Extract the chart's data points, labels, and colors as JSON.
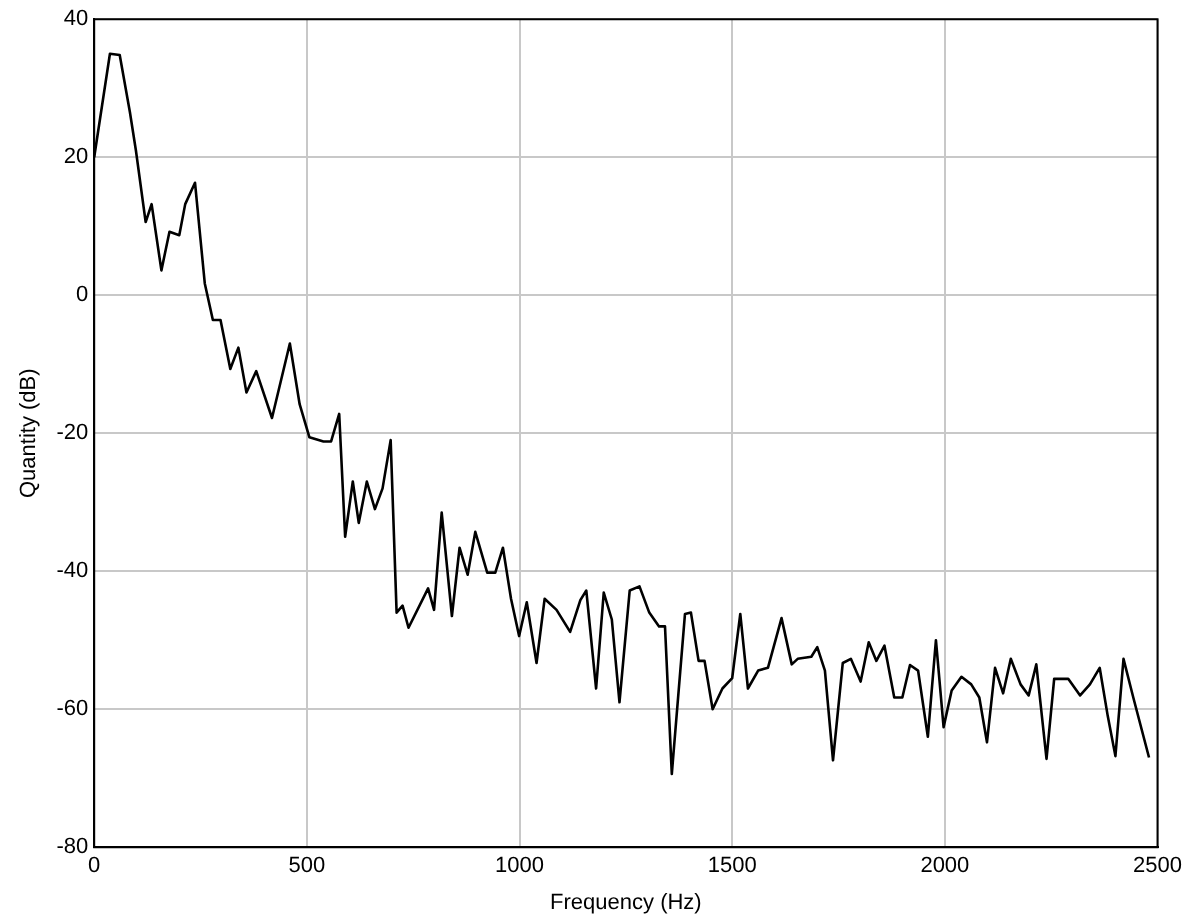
{
  "chart_data": {
    "type": "line",
    "xlabel": "Frequency (Hz)",
    "ylabel": "Quantity (dB)",
    "xlim": [
      0,
      2500
    ],
    "xticks": [
      0,
      500,
      1000,
      1500,
      2000,
      2500
    ],
    "ylim": [
      -80,
      40
    ],
    "yticks": [
      -80,
      -60,
      -40,
      -20,
      0,
      20,
      40
    ],
    "grid": true,
    "legend": false,
    "marker": "none",
    "line_style": "solid",
    "series": [
      {
        "color": "#000000",
        "x": [
          0,
          37,
          60,
          84,
          98,
          121,
          135,
          158,
          177,
          200,
          214,
          237,
          260,
          279,
          297,
          320,
          339,
          358,
          381,
          418,
          460,
          483,
          506,
          539,
          557,
          576,
          590,
          608,
          622,
          641,
          660,
          678,
          697,
          711,
          725,
          739,
          785,
          799,
          817,
          841,
          859,
          878,
          896,
          924,
          943,
          961,
          980,
          999,
          1017,
          1040,
          1059,
          1087,
          1119,
          1143,
          1157,
          1180,
          1198,
          1217,
          1235,
          1259,
          1282,
          1305,
          1328,
          1342,
          1358,
          1389,
          1403,
          1421,
          1435,
          1454,
          1477,
          1500,
          1519,
          1537,
          1561,
          1584,
          1616,
          1640,
          1654,
          1686,
          1700,
          1718,
          1737,
          1760,
          1779,
          1802,
          1821,
          1839,
          1858,
          1881,
          1900,
          1918,
          1937,
          1960,
          1979,
          1997,
          2016,
          2039,
          2062,
          2081,
          2099,
          2118,
          2137,
          2155,
          2178,
          2197,
          2215,
          2239,
          2257,
          2290,
          2318,
          2341,
          2364,
          2383,
          2401,
          2420,
          2443,
          2480
        ],
        "values": [
          20,
          35,
          34.8,
          26.5,
          21,
          10.6,
          13.2,
          3.6,
          9.2,
          8.7,
          13.2,
          16.3,
          1.7,
          -3.6,
          -3.6,
          -10.7,
          -7.6,
          -14.1,
          -11,
          -17.8,
          -7,
          -15.8,
          -20.6,
          -21.2,
          -21.2,
          -17.2,
          -35,
          -27,
          -33,
          -27,
          -31,
          -28,
          -21,
          -46,
          -45,
          -48.2,
          -42.5,
          -45.6,
          -31.5,
          -46.5,
          -36.6,
          -40.5,
          -34.3,
          -40.2,
          -40.2,
          -36.6,
          -44,
          -49.4,
          -44.5,
          -53.3,
          -44,
          -45.6,
          -48.8,
          -44.2,
          -42.8,
          -57,
          -43.1,
          -47,
          -59,
          -42.8,
          -42.2,
          -46,
          -48,
          -48,
          -69.4,
          -46.2,
          -46,
          -53,
          -53,
          -60,
          -57,
          -55.5,
          -46.2,
          -57,
          -54.4,
          -54,
          -46.8,
          -53.5,
          -52.7,
          -52.4,
          -51,
          -54.4,
          -67.4,
          -53.3,
          -52.7,
          -56,
          -50.3,
          -53,
          -50.8,
          -58.3,
          -58.3,
          -53.6,
          -54.4,
          -64,
          -50,
          -62.6,
          -57.3,
          -55.3,
          -56.4,
          -58.3,
          -64.8,
          -54,
          -57.7,
          -52.7,
          -56.4,
          -58,
          -53.5,
          -67.2,
          -55.6,
          -55.6,
          -58,
          -56.4,
          -54,
          -61,
          -66.8,
          -52.7,
          -58.3,
          -67
        ]
      }
    ]
  }
}
